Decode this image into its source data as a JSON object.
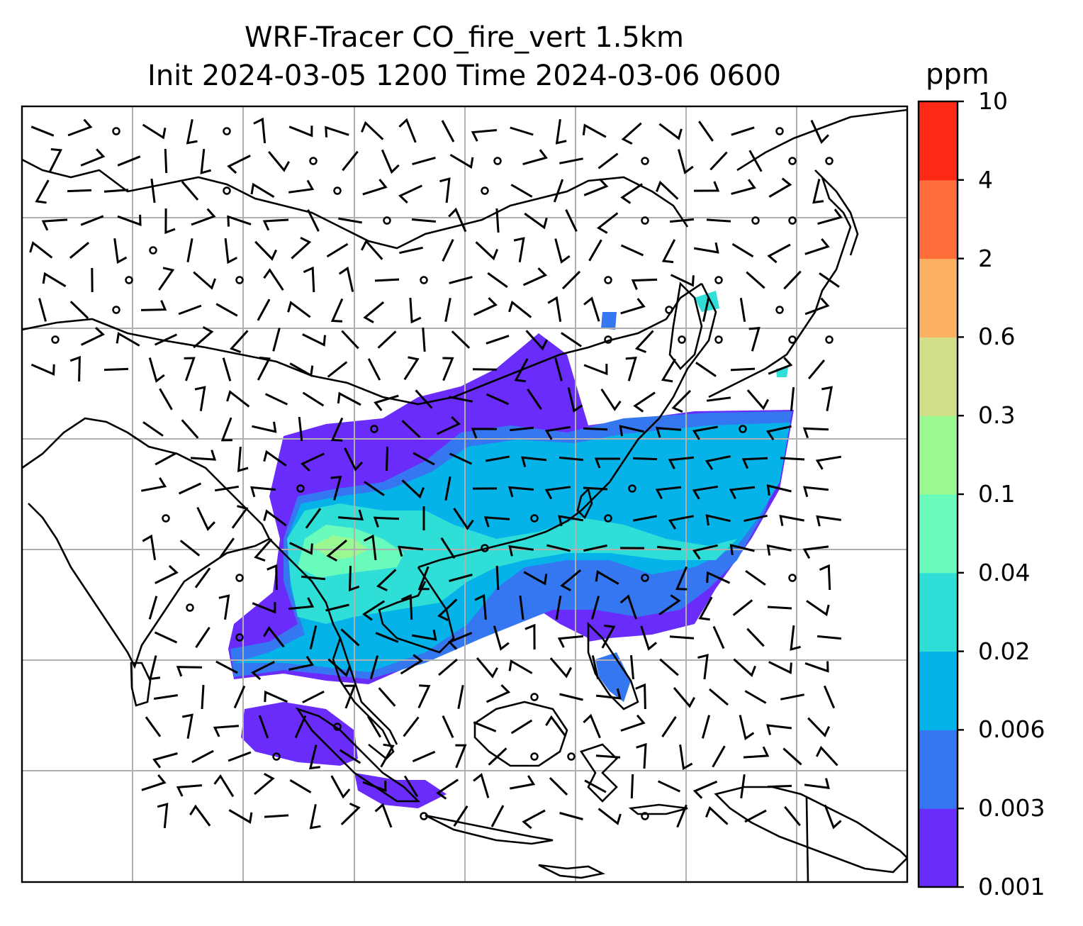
{
  "title": {
    "line1": "WRF-Tracer CO_fire_vert 1.5km",
    "line2": "Init 2024-03-05 1200 Time 2024-03-06 0600"
  },
  "colorbar": {
    "unit": "ppm",
    "levels": [
      "0.001",
      "0.003",
      "0.006",
      "0.02",
      "0.04",
      "0.1",
      "0.3",
      "0.6",
      "2",
      "4",
      "10"
    ],
    "colors": [
      "#6a2cfb",
      "#3577f0",
      "#05b3e8",
      "#30ded8",
      "#69fbbc",
      "#99f891",
      "#d3de88",
      "#fcb061",
      "#fe6e3b",
      "#fd2914"
    ]
  },
  "map": {
    "gridlines": true,
    "wind_barbs": true,
    "calm_markers": true,
    "coastlines": true
  }
}
